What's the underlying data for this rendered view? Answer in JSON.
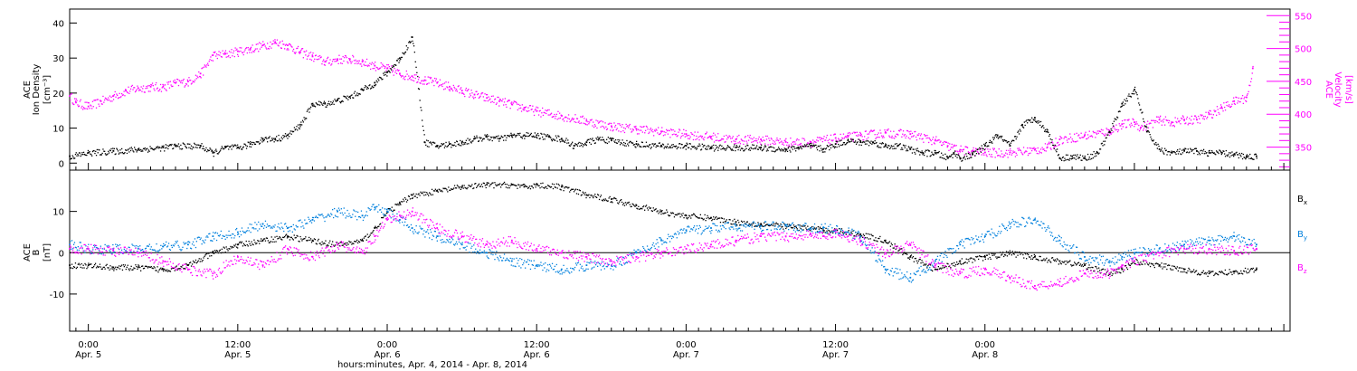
{
  "chart_data": [
    {
      "type": "scatter",
      "panel": "top",
      "title": "",
      "ylabel_left": [
        "ACE",
        "Ion Density",
        "[cm⁻³]"
      ],
      "ylabel_right": [
        "ACE",
        "Velocity",
        "[km/s]"
      ],
      "ylim_left": [
        -2,
        44
      ],
      "ylim_right": [
        315,
        560
      ],
      "yticks_left": [
        0,
        10,
        20,
        30,
        40
      ],
      "yticks_right": [
        350,
        400,
        450,
        500,
        550
      ],
      "x_unit": "hours since Apr. 4, 2014 00:00",
      "xlim": [
        22.5,
        120.5
      ],
      "series": [
        {
          "name": "Ion Density",
          "axis": "left",
          "color": "#000000",
          "x": [
            22.5,
            24,
            26,
            28,
            30,
            31,
            33,
            34,
            35,
            36,
            37,
            38,
            39,
            40,
            41,
            42,
            43,
            44,
            45,
            46,
            47,
            48,
            49,
            50,
            51,
            52,
            53,
            54,
            55,
            56,
            57,
            58,
            59,
            60,
            61,
            62,
            63,
            64,
            65,
            66,
            68,
            70,
            72,
            74,
            76,
            78,
            80,
            81,
            82,
            83,
            84,
            85,
            86,
            87,
            88,
            89,
            90,
            91,
            92,
            93,
            93.5,
            94,
            95,
            96,
            97,
            98,
            99,
            100,
            101,
            102,
            103,
            104,
            105,
            106,
            107,
            108,
            109,
            110,
            111,
            112,
            113,
            114,
            115,
            116,
            117,
            117.8
          ],
          "values": [
            2,
            3,
            3.5,
            4,
            4.5,
            5,
            5,
            3,
            4.5,
            4.5,
            5.5,
            7,
            7,
            8,
            11,
            17,
            17,
            18,
            19,
            21,
            23,
            26,
            30,
            36,
            6,
            5,
            5.5,
            6,
            7,
            7.5,
            7,
            8,
            8,
            8,
            7.5,
            7,
            5,
            6,
            7,
            6.5,
            5.5,
            5,
            5,
            4.5,
            4.5,
            4.5,
            4,
            4.5,
            5,
            4,
            5.5,
            6.5,
            6,
            6,
            5,
            5,
            4,
            3,
            3,
            1.5,
            3,
            1.5,
            2.5,
            5,
            8,
            5,
            11,
            13,
            9,
            1.5,
            2,
            1.5,
            3,
            9,
            17,
            21,
            9,
            4,
            3,
            3.5,
            3.5,
            3,
            3,
            2.5,
            2,
            2
          ]
        },
        {
          "name": "Velocity",
          "axis": "right",
          "color": "#ff00ff",
          "x": [
            22.5,
            23,
            24,
            25,
            26,
            27,
            28,
            29,
            30,
            31,
            32,
            33,
            34,
            35,
            36,
            37,
            38,
            39,
            40,
            41,
            42,
            43,
            44,
            45,
            46,
            47,
            48,
            49,
            50,
            51,
            52,
            53,
            54,
            55,
            56,
            57,
            58,
            59,
            60,
            62,
            64,
            66,
            68,
            70,
            72,
            74,
            76,
            78,
            80,
            82,
            84,
            85,
            86,
            88,
            90,
            92,
            93,
            94,
            95,
            96,
            98,
            100,
            101,
            102,
            104,
            106,
            107,
            108,
            108.5,
            110,
            111,
            112,
            113,
            114,
            115,
            116,
            117,
            117.5
          ],
          "values": [
            428,
            418,
            412,
            420,
            428,
            436,
            440,
            442,
            442,
            448,
            450,
            462,
            490,
            492,
            496,
            500,
            505,
            510,
            505,
            495,
            488,
            480,
            484,
            484,
            480,
            474,
            470,
            462,
            458,
            452,
            448,
            442,
            436,
            430,
            425,
            420,
            415,
            410,
            405,
            398,
            390,
            382,
            378,
            374,
            370,
            366,
            362,
            362,
            358,
            358,
            364,
            366,
            368,
            372,
            370,
            360,
            352,
            346,
            344,
            342,
            342,
            346,
            350,
            362,
            368,
            375,
            385,
            388,
            380,
            392,
            388,
            392,
            392,
            400,
            410,
            420,
            426,
            470
          ]
        }
      ]
    },
    {
      "type": "scatter",
      "panel": "bottom",
      "title": "",
      "ylabel_left": [
        "ACE",
        "B",
        "[nT]"
      ],
      "ylim": [
        -19,
        20
      ],
      "yticks": [
        -10,
        0,
        10
      ],
      "zero_line": true,
      "xlabel": "hours:minutes, Apr.  4, 2014 - Apr.  8, 2014",
      "x_unit": "hours since Apr. 4, 2014 00:00",
      "xlim": [
        22.5,
        120.5
      ],
      "xticks": [
        {
          "x": 24,
          "time": "0:00",
          "date": "Apr. 5"
        },
        {
          "x": 36,
          "time": "12:00",
          "date": "Apr. 5"
        },
        {
          "x": 48,
          "time": "0:00",
          "date": "Apr. 6"
        },
        {
          "x": 60,
          "time": "12:00",
          "date": "Apr. 6"
        },
        {
          "x": 72,
          "time": "0:00",
          "date": "Apr. 7"
        },
        {
          "x": 84,
          "time": "12:00",
          "date": "Apr. 7"
        },
        {
          "x": 96,
          "time": "0:00",
          "date": "Apr. 8"
        }
      ],
      "series": [
        {
          "name": "Bx",
          "label_main": "B",
          "label_sub": "x",
          "color": "#000000",
          "x": [
            22.5,
            24,
            26,
            28,
            30,
            32,
            34,
            36,
            38,
            40,
            42,
            44,
            46,
            47,
            48,
            49,
            50,
            52,
            54,
            56,
            58,
            59,
            60,
            62,
            64,
            66,
            68,
            70,
            72,
            74,
            76,
            78,
            80,
            82,
            83,
            84,
            85,
            86,
            88,
            90,
            92,
            94,
            96,
            98,
            100,
            102,
            104,
            106,
            107,
            108,
            110,
            112,
            114,
            116,
            117.8
          ],
          "values": [
            -3,
            -3,
            -3.5,
            -3.5,
            -4,
            -3,
            0,
            2,
            3,
            4,
            3,
            2,
            3,
            6,
            10,
            12,
            14,
            15,
            16,
            16.5,
            16.5,
            16,
            16.5,
            16,
            14,
            13,
            11.5,
            10,
            9,
            8.5,
            7.5,
            7,
            6.5,
            6,
            5.5,
            5.5,
            5,
            4.5,
            3,
            -1,
            -4,
            -2,
            -1,
            0,
            -1,
            -2,
            -3,
            -5,
            -4,
            -2,
            -3,
            -4,
            -5,
            -4.5,
            -4
          ]
        },
        {
          "name": "By",
          "label_main": "B",
          "label_sub": "y",
          "color": "#0080dd",
          "x": [
            22.5,
            24,
            26,
            28,
            30,
            32,
            34,
            36,
            38,
            40,
            42,
            44,
            46,
            47,
            48,
            49,
            50,
            52,
            54,
            56,
            58,
            60,
            62,
            64,
            66,
            68,
            70,
            72,
            74,
            76,
            78,
            80,
            82,
            83,
            84,
            85,
            86,
            88,
            90,
            92,
            94,
            96,
            98,
            100,
            102,
            104,
            106,
            107,
            108,
            110,
            112,
            114,
            116,
            117.8
          ],
          "values": [
            2,
            1,
            1,
            1,
            1.5,
            2,
            4,
            5,
            7,
            6,
            8,
            10,
            9,
            11,
            10,
            8,
            6,
            4,
            2,
            0,
            -2,
            -3,
            -4,
            -3,
            -3,
            0,
            3,
            5.5,
            6,
            6.5,
            6.5,
            6.5,
            6,
            6,
            5.5,
            5,
            4,
            -4,
            -6,
            -2,
            2,
            4,
            7,
            8,
            3,
            -1,
            -2,
            -1,
            0,
            1,
            2,
            3,
            4,
            2
          ]
        },
        {
          "name": "Bz",
          "label_main": "B",
          "label_sub": "z",
          "color": "#ff00ff",
          "x": [
            22.5,
            24,
            26,
            28,
            30,
            32,
            34,
            36,
            38,
            40,
            42,
            44,
            46,
            47,
            48,
            49,
            50,
            52,
            54,
            56,
            58,
            60,
            62,
            64,
            66,
            68,
            70,
            72,
            74,
            76,
            78,
            80,
            82,
            83,
            84,
            85,
            86,
            88,
            90,
            92,
            94,
            96,
            98,
            100,
            102,
            104,
            106,
            107,
            108,
            110,
            112,
            114,
            116,
            117.8
          ],
          "values": [
            1,
            1,
            0.5,
            0,
            -2,
            -4,
            -5,
            -1,
            -3,
            1,
            -1,
            2,
            0,
            4,
            8,
            9,
            10,
            6,
            4,
            2,
            3,
            1,
            0,
            -1,
            -2,
            -1,
            0,
            1,
            2,
            3,
            4,
            4,
            4.5,
            4,
            5,
            4,
            3,
            0,
            2,
            -3,
            -5,
            -4,
            -6,
            -8,
            -7,
            -5,
            -5,
            -3,
            -2,
            0,
            1,
            1,
            0.5,
            1
          ]
        }
      ]
    }
  ]
}
